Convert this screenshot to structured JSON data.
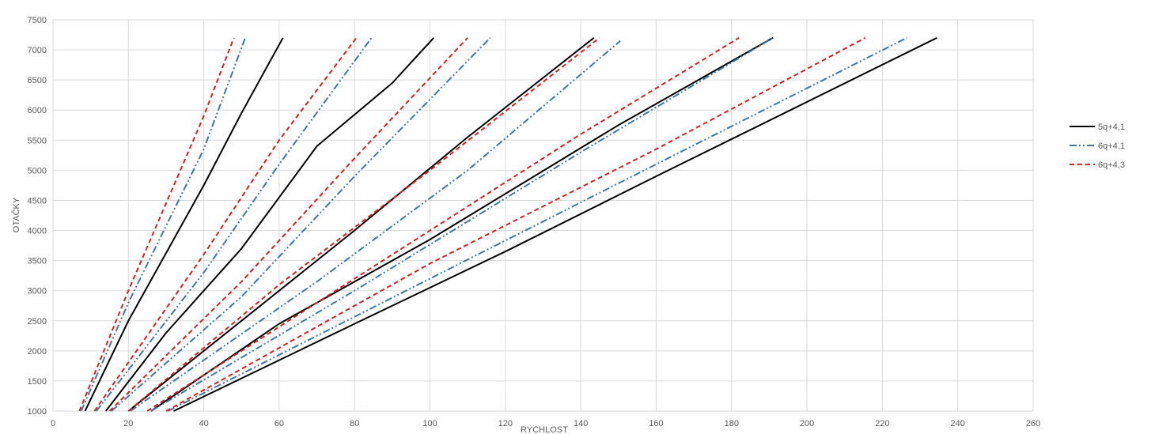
{
  "chart_data": {
    "type": "line",
    "title": "",
    "xlabel": "RYCHLOST",
    "ylabel": "OTAČKY",
    "xlim": [
      0,
      260
    ],
    "ylim": [
      1000,
      7500
    ],
    "xticks": [
      0,
      20,
      40,
      60,
      80,
      100,
      120,
      140,
      160,
      180,
      200,
      220,
      240,
      260
    ],
    "yticks": [
      1000,
      1500,
      2000,
      2500,
      3000,
      3500,
      4000,
      4500,
      5000,
      5500,
      6000,
      6500,
      7000,
      7500
    ],
    "grid": true,
    "legend_position": "right",
    "series": [
      {
        "name": "5q+4,1",
        "color": "#000000",
        "dash": "solid",
        "lines": [
          [
            [
              8.5,
              1000
            ],
            [
              20,
              2500
            ],
            [
              40,
              4750
            ],
            [
              50,
              5950
            ],
            [
              61,
              7200
            ]
          ],
          [
            [
              14,
              1000
            ],
            [
              30,
              2300
            ],
            [
              50,
              3700
            ],
            [
              70,
              5400
            ],
            [
              90,
              6450
            ],
            [
              101,
              7200
            ]
          ],
          [
            [
              20,
              1000
            ],
            [
              50,
              2500
            ],
            [
              80,
              4000
            ],
            [
              110,
              5550
            ],
            [
              143.5,
              7200
            ]
          ],
          [
            [
              26,
              1000
            ],
            [
              60,
              2450
            ],
            [
              100,
              3850
            ],
            [
              150,
              5750
            ],
            [
              191,
              7200
            ]
          ],
          [
            [
              32,
              1000
            ],
            [
              80,
              2450
            ],
            [
              120,
              3650
            ],
            [
              160,
              4900
            ],
            [
              234.5,
              7200
            ]
          ]
        ]
      },
      {
        "name": "6q+4,1",
        "color": "#3a79a6",
        "dash": "dashdotdot",
        "lines": [
          [
            [
              7.5,
              1000
            ],
            [
              20,
              2800
            ],
            [
              40,
              5350
            ],
            [
              51,
              7200
            ]
          ],
          [
            [
              11.5,
              1000
            ],
            [
              40,
              3300
            ],
            [
              60,
              5100
            ],
            [
              84.5,
              7200
            ]
          ],
          [
            [
              15.5,
              1000
            ],
            [
              50,
              2900
            ],
            [
              80,
              4900
            ],
            [
              116,
              7200
            ]
          ],
          [
            [
              20.5,
              1000
            ],
            [
              70,
              3150
            ],
            [
              110,
              5000
            ],
            [
              150.5,
              7150
            ]
          ],
          [
            [
              26,
              1000
            ],
            [
              80,
              3000
            ],
            [
              140,
              5300
            ],
            [
              191,
              7200
            ]
          ],
          [
            [
              30.5,
              1000
            ],
            [
              100,
              3200
            ],
            [
              160,
              5100
            ],
            [
              226.5,
              7200
            ]
          ]
        ]
      },
      {
        "name": "6q+4,3",
        "color": "#d71f1f",
        "dash": "dashed",
        "lines": [
          [
            [
              7,
              1000
            ],
            [
              20,
              3000
            ],
            [
              40,
              5900
            ],
            [
              48,
              7200
            ]
          ],
          [
            [
              11,
              1000
            ],
            [
              40,
              3600
            ],
            [
              60,
              5500
            ],
            [
              80.5,
              7200
            ]
          ],
          [
            [
              15,
              1000
            ],
            [
              50,
              3150
            ],
            [
              80,
              5200
            ],
            [
              110,
              7200
            ]
          ],
          [
            [
              20,
              1000
            ],
            [
              60,
              3100
            ],
            [
              100,
              5000
            ],
            [
              145,
              7200
            ]
          ],
          [
            [
              25,
              1000
            ],
            [
              80,
              3200
            ],
            [
              140,
              5600
            ],
            [
              182,
              7200
            ]
          ],
          [
            [
              30,
              1000
            ],
            [
              100,
              3450
            ],
            [
              160,
              5350
            ],
            [
              215.5,
              7200
            ]
          ]
        ]
      }
    ]
  }
}
